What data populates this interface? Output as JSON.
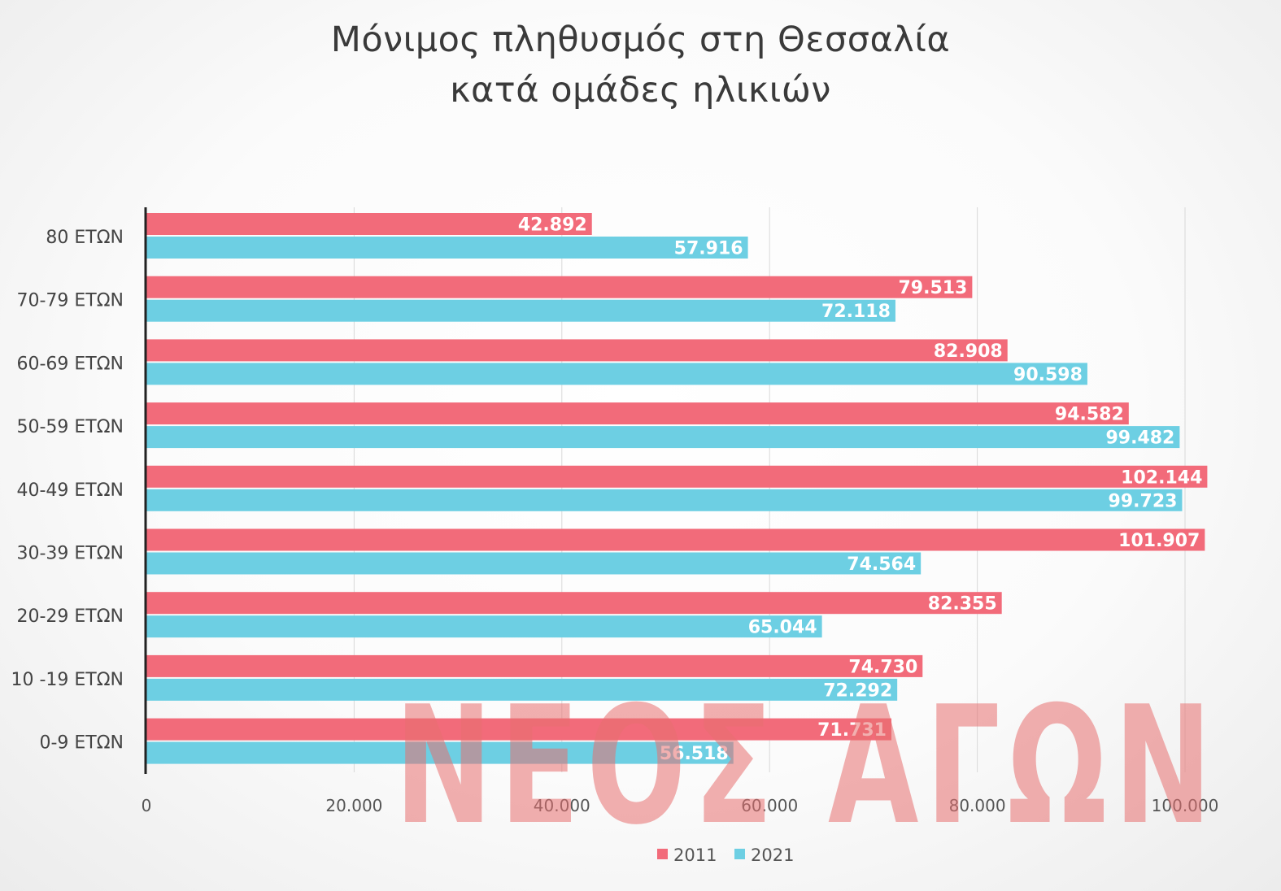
{
  "chart_data": {
    "type": "bar",
    "orientation": "horizontal",
    "title_lines": [
      "Μόνιμος πληθυσμός στη Θεσσαλία",
      "κατά ομάδες ηλικιών"
    ],
    "categories": [
      "80 ΕΤΩΝ",
      "70-79 ΕΤΩΝ",
      "60-69 ΕΤΩΝ",
      "50-59 ΕΤΩΝ",
      "40-49 ΕΤΩΝ",
      "30-39 ΕΤΩΝ",
      "20-29 ΕΤΩΝ",
      "10 -19 ΕΤΩΝ",
      "0-9 ΕΤΩΝ"
    ],
    "series": [
      {
        "name": "2011",
        "color": "#f26b7a",
        "values": [
          42892,
          79513,
          82908,
          94582,
          102144,
          101907,
          82355,
          74730,
          71731
        ],
        "labels": [
          "42.892",
          "79.513",
          "82.908",
          "94.582",
          "102.144",
          "101.907",
          "82.355",
          "74.730",
          "71.731"
        ]
      },
      {
        "name": "2021",
        "color": "#6dcfe3",
        "values": [
          57916,
          72118,
          90598,
          99482,
          99723,
          74564,
          65044,
          72292,
          56518
        ],
        "labels": [
          "57.916",
          "72.118",
          "90.598",
          "99.482",
          "99.723",
          "74.564",
          "65.044",
          "72.292",
          "56.518"
        ]
      }
    ],
    "xlim": [
      0,
      100000
    ],
    "x_ticks": [
      0,
      20000,
      40000,
      60000,
      80000,
      100000
    ],
    "x_tick_labels": [
      "0",
      "20.000",
      "40.000",
      "60.000",
      "80.000",
      "100.000"
    ],
    "grid": "vertical",
    "legend_position": "bottom"
  },
  "watermark": {
    "text": "ΝΕΟΣ ΑΓΩΝ",
    "color": "#e87070"
  }
}
